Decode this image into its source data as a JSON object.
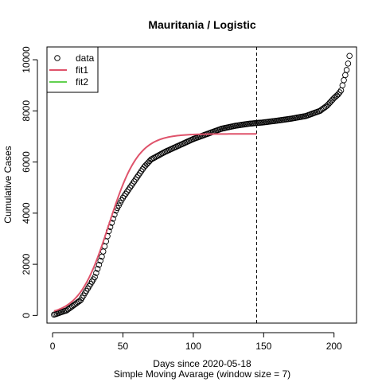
{
  "chart_data": {
    "type": "scatter",
    "title": "Mauritania / Logistic",
    "xlabel": "Days since 2020-05-18",
    "subtitle": "Simple Moving Avarage (window size = 7)",
    "ylabel": "Cumulative Cases",
    "xlim": [
      -4,
      216
    ],
    "ylim": [
      -300,
      10500
    ],
    "x_ticks": [
      0,
      50,
      100,
      150,
      200
    ],
    "y_ticks": [
      0,
      2000,
      4000,
      6000,
      8000,
      10000
    ],
    "vline_x": 145,
    "legend_position": "top-left",
    "legend": [
      {
        "label": "data",
        "kind": "point",
        "color": "#000000"
      },
      {
        "label": "fit1",
        "kind": "line",
        "color": "#DF536B"
      },
      {
        "label": "fit2",
        "kind": "line",
        "color": "#61D04F"
      }
    ],
    "data_anchors": [
      [
        1,
        30
      ],
      [
        10,
        200
      ],
      [
        20,
        600
      ],
      [
        30,
        1500
      ],
      [
        35,
        2300
      ],
      [
        40,
        3300
      ],
      [
        45,
        4100
      ],
      [
        50,
        4600
      ],
      [
        55,
        5000
      ],
      [
        60,
        5400
      ],
      [
        65,
        5800
      ],
      [
        70,
        6100
      ],
      [
        80,
        6400
      ],
      [
        90,
        6650
      ],
      [
        100,
        6900
      ],
      [
        110,
        7100
      ],
      [
        120,
        7300
      ],
      [
        130,
        7420
      ],
      [
        140,
        7500
      ],
      [
        150,
        7550
      ],
      [
        160,
        7620
      ],
      [
        170,
        7700
      ],
      [
        180,
        7800
      ],
      [
        190,
        8000
      ],
      [
        195,
        8200
      ],
      [
        200,
        8500
      ],
      [
        203,
        8650
      ],
      [
        205,
        8800
      ],
      [
        207,
        9200
      ],
      [
        209,
        9600
      ],
      [
        210,
        9850
      ],
      [
        211,
        10150
      ]
    ],
    "fit1": {
      "K": 7100,
      "r": 0.095,
      "t0": 40,
      "x_range": [
        1,
        145
      ],
      "color": "#DF536B"
    }
  }
}
